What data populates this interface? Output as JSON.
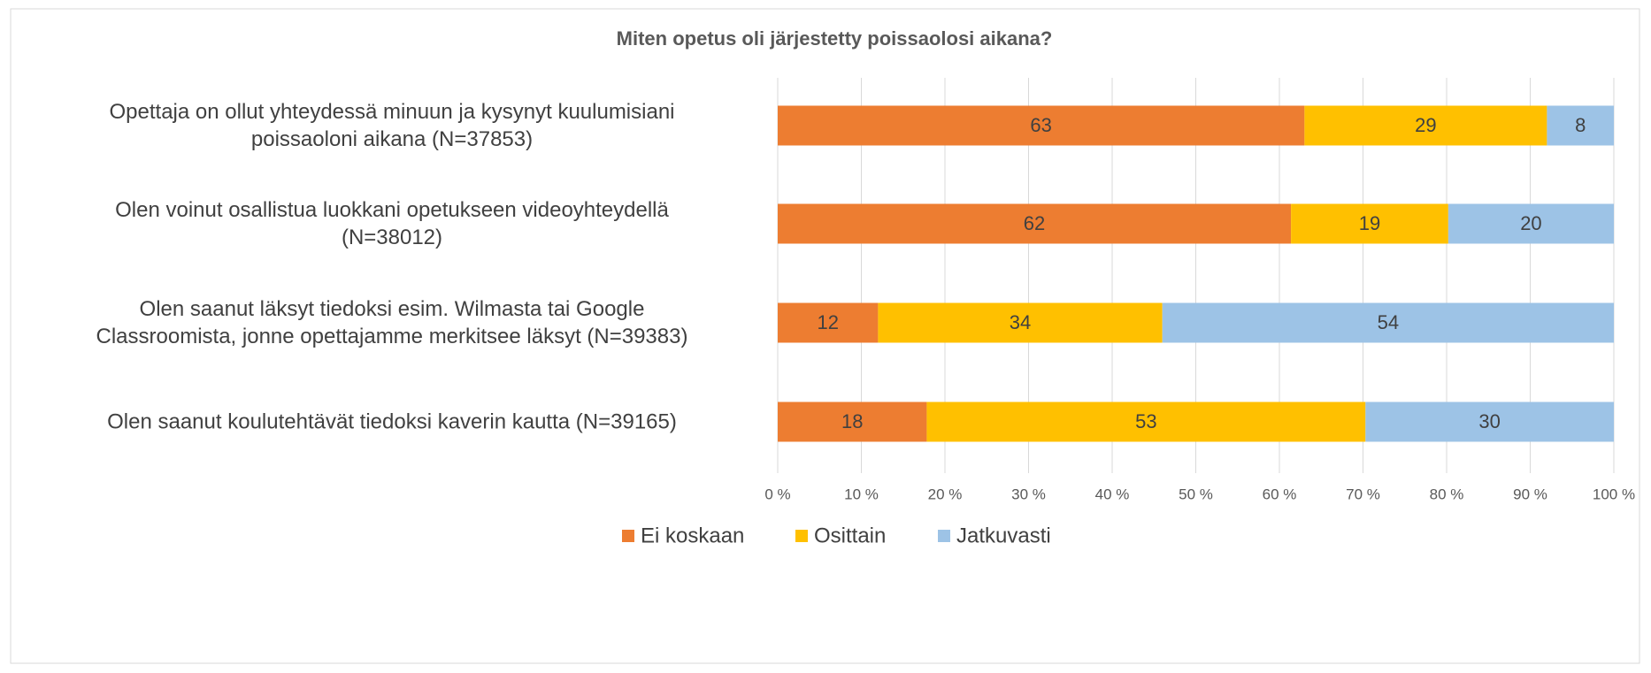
{
  "chart_data": {
    "type": "stacked_bar_horizontal_percent",
    "title": "Miten opetus oli järjestetty poissaolosi aikana?",
    "categories": [
      "Opettaja on ollut yhteydessä minuun ja kysynyt kuulumisiani\npoissaoloni aikana (N=37853)",
      "Olen voinut osallistua luokkani opetukseen videoyhteydellä\n(N=38012)",
      "Olen saanut läksyt tiedoksi esim. Wilmasta tai Google\nClassroomista, jonne opettajamme merkitsee läksyt (N=39383)",
      "Olen saanut koulutehtävät tiedoksi kaverin kautta (N=39165)"
    ],
    "series": [
      {
        "name": "Ei koskaan",
        "color": "#ed7d31",
        "values": [
          63,
          62,
          12,
          18
        ]
      },
      {
        "name": "Osittain",
        "color": "#ffc000",
        "values": [
          29,
          19,
          34,
          53
        ]
      },
      {
        "name": "Jatkuvasti",
        "color": "#9dc3e6",
        "values": [
          8,
          20,
          54,
          30
        ]
      }
    ],
    "xlim": [
      0,
      100
    ],
    "xticks": [
      {
        "value": 0,
        "label": "0 %"
      },
      {
        "value": 10,
        "label": "10 %"
      },
      {
        "value": 20,
        "label": "20 %"
      },
      {
        "value": 30,
        "label": "30 %"
      },
      {
        "value": 40,
        "label": "40 %"
      },
      {
        "value": 50,
        "label": "50 %"
      },
      {
        "value": 60,
        "label": "60 %"
      },
      {
        "value": 70,
        "label": "70 %"
      },
      {
        "value": 80,
        "label": "80 %"
      },
      {
        "value": 90,
        "label": "90 %"
      },
      {
        "value": 100,
        "label": "100 %"
      }
    ],
    "grid": true,
    "legend": "bottom"
  }
}
